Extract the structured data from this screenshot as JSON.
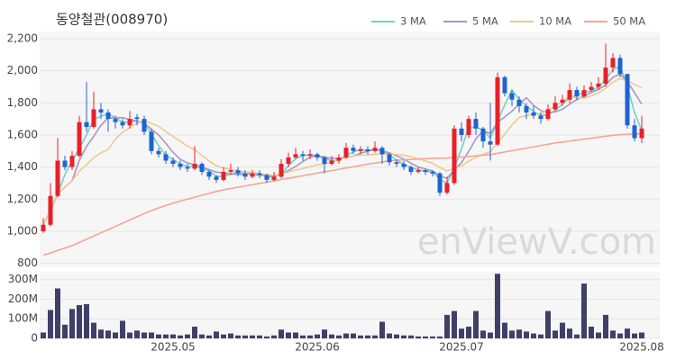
{
  "chart_data": {
    "type": "candlestick",
    "title": "동양철관(008970)",
    "watermark": "enViewV.com",
    "categories": [
      null,
      null,
      null,
      null,
      null,
      null,
      null,
      null,
      null,
      null,
      null,
      null,
      null,
      null,
      null,
      null,
      null,
      null,
      "2025.05",
      null,
      null,
      null,
      null,
      null,
      null,
      null,
      null,
      null,
      null,
      null,
      null,
      null,
      null,
      null,
      null,
      null,
      null,
      null,
      "2025.06",
      null,
      null,
      null,
      null,
      null,
      null,
      null,
      null,
      null,
      null,
      null,
      null,
      null,
      null,
      null,
      null,
      null,
      null,
      null,
      "2025.07",
      null,
      null,
      null,
      null,
      null,
      null,
      null,
      null,
      null,
      null,
      null,
      null,
      null,
      null,
      null,
      null,
      null,
      null,
      null,
      null,
      null,
      null,
      null,
      null,
      "2025.08"
    ],
    "open": [
      1000,
      1040,
      1220,
      1440,
      1400,
      1470,
      1680,
      1650,
      1760,
      1740,
      1700,
      1680,
      1660,
      1710,
      1700,
      1620,
      1500,
      1480,
      1440,
      1420,
      1400,
      1390,
      1420,
      1370,
      1340,
      1320,
      1370,
      1380,
      1360,
      1340,
      1360,
      1350,
      1320,
      1340,
      1420,
      1460,
      1480,
      1470,
      1480,
      1460,
      1420,
      1440,
      1460,
      1520,
      1500,
      1510,
      1500,
      1520,
      1480,
      1430,
      1420,
      1400,
      1370,
      1380,
      1370,
      1360,
      1240,
      1300,
      1640,
      1600,
      1700,
      1640,
      1560,
      1540,
      1960,
      1860,
      1820,
      1780,
      1740,
      1720,
      1700,
      1760,
      1800,
      1820,
      1880,
      1840,
      1880,
      1900,
      1920,
      2020,
      2080,
      1980,
      1660,
      1580
    ],
    "high": [
      1080,
      1300,
      1580,
      1470,
      1500,
      1720,
      1930,
      1870,
      1800,
      1760,
      1720,
      1700,
      1750,
      1730,
      1720,
      1640,
      1520,
      1500,
      1460,
      1440,
      1420,
      1530,
      1430,
      1380,
      1350,
      1400,
      1420,
      1400,
      1380,
      1380,
      1380,
      1360,
      1370,
      1450,
      1490,
      1520,
      1500,
      1510,
      1490,
      1470,
      1470,
      1480,
      1550,
      1540,
      1530,
      1530,
      1560,
      1530,
      1490,
      1450,
      1440,
      1410,
      1400,
      1390,
      1380,
      1370,
      1340,
      1660,
      1680,
      1720,
      1740,
      1650,
      1800,
      1990,
      1970,
      1880,
      1840,
      1800,
      1780,
      1740,
      1790,
      1840,
      1850,
      1920,
      1900,
      1910,
      1930,
      1960,
      2170,
      2110,
      2100,
      1980,
      1700,
      1720
    ],
    "low": [
      990,
      1030,
      1210,
      1380,
      1380,
      1460,
      1620,
      1640,
      1700,
      1620,
      1640,
      1640,
      1640,
      1660,
      1600,
      1480,
      1460,
      1420,
      1400,
      1380,
      1370,
      1380,
      1350,
      1320,
      1300,
      1310,
      1350,
      1340,
      1320,
      1330,
      1330,
      1300,
      1310,
      1330,
      1400,
      1450,
      1440,
      1450,
      1440,
      1360,
      1410,
      1420,
      1450,
      1480,
      1480,
      1480,
      1490,
      1420,
      1410,
      1400,
      1380,
      1350,
      1360,
      1350,
      1340,
      1220,
      1230,
      1290,
      1560,
      1580,
      1600,
      1520,
      1440,
      1530,
      1840,
      1780,
      1740,
      1700,
      1700,
      1670,
      1690,
      1750,
      1780,
      1800,
      1820,
      1830,
      1870,
      1880,
      1900,
      1990,
      1960,
      1640,
      1560,
      1550
    ],
    "close": [
      1040,
      1220,
      1440,
      1400,
      1470,
      1680,
      1650,
      1760,
      1740,
      1700,
      1680,
      1660,
      1700,
      1700,
      1620,
      1500,
      1480,
      1440,
      1420,
      1400,
      1390,
      1420,
      1370,
      1340,
      1320,
      1370,
      1380,
      1360,
      1340,
      1360,
      1350,
      1320,
      1340,
      1420,
      1460,
      1480,
      1470,
      1480,
      1460,
      1420,
      1440,
      1460,
      1520,
      1500,
      1510,
      1500,
      1520,
      1480,
      1430,
      1420,
      1400,
      1370,
      1380,
      1370,
      1360,
      1240,
      1300,
      1640,
      1600,
      1700,
      1640,
      1560,
      1540,
      1960,
      1860,
      1820,
      1780,
      1740,
      1720,
      1700,
      1760,
      1800,
      1820,
      1880,
      1840,
      1880,
      1900,
      1920,
      2020,
      2080,
      1980,
      1660,
      1580,
      1640
    ],
    "up_color": "#e8202a",
    "down_color": "#1e64d0",
    "series": [
      {
        "name": "3 MA",
        "color": "#6fd3c8",
        "values": [
          1040,
          1130,
          1233,
          1353,
          1437,
          1517,
          1600,
          1697,
          1717,
          1733,
          1707,
          1680,
          1680,
          1687,
          1673,
          1607,
          1533,
          1473,
          1447,
          1420,
          1403,
          1403,
          1393,
          1377,
          1343,
          1343,
          1357,
          1370,
          1360,
          1353,
          1350,
          1343,
          1337,
          1360,
          1407,
          1453,
          1470,
          1477,
          1470,
          1453,
          1440,
          1440,
          1473,
          1493,
          1510,
          1503,
          1510,
          1500,
          1477,
          1443,
          1417,
          1397,
          1383,
          1373,
          1370,
          1323,
          1300,
          1393,
          1513,
          1647,
          1647,
          1633,
          1580,
          1687,
          1787,
          1880,
          1820,
          1780,
          1747,
          1720,
          1727,
          1753,
          1793,
          1833,
          1847,
          1867,
          1873,
          1900,
          1947,
          2007,
          2027,
          1907,
          1740,
          1627
        ]
      },
      {
        "name": "5 MA",
        "color": "#a896c6",
        "values": [
          1040,
          1130,
          1233,
          1275,
          1314,
          1442,
          1528,
          1592,
          1660,
          1706,
          1706,
          1708,
          1696,
          1688,
          1672,
          1636,
          1600,
          1548,
          1492,
          1448,
          1426,
          1414,
          1400,
          1384,
          1368,
          1364,
          1356,
          1354,
          1354,
          1362,
          1358,
          1342,
          1342,
          1358,
          1378,
          1404,
          1434,
          1462,
          1470,
          1462,
          1454,
          1452,
          1460,
          1468,
          1486,
          1498,
          1510,
          1502,
          1488,
          1470,
          1450,
          1424,
          1400,
          1388,
          1376,
          1344,
          1330,
          1382,
          1428,
          1496,
          1576,
          1628,
          1608,
          1680,
          1712,
          1748,
          1792,
          1832,
          1784,
          1752,
          1740,
          1744,
          1760,
          1792,
          1820,
          1844,
          1864,
          1884,
          1912,
          1960,
          1980,
          1932,
          1864,
          1792
        ]
      },
      {
        "name": "10 MA",
        "color": "#f0c98e",
        "values": [
          1040,
          1130,
          1233,
          1275,
          1314,
          1375,
          1414,
          1458,
          1489,
          1510,
          1574,
          1618,
          1644,
          1674,
          1689,
          1671,
          1654,
          1622,
          1590,
          1560,
          1531,
          1507,
          1474,
          1438,
          1408,
          1395,
          1385,
          1377,
          1369,
          1365,
          1361,
          1351,
          1348,
          1356,
          1370,
          1381,
          1390,
          1402,
          1414,
          1420,
          1429,
          1443,
          1461,
          1469,
          1474,
          1476,
          1481,
          1481,
          1478,
          1478,
          1474,
          1465,
          1451,
          1438,
          1423,
          1397,
          1375,
          1391,
          1408,
          1436,
          1460,
          1479,
          1495,
          1554,
          1604,
          1662,
          1710,
          1720,
          1732,
          1732,
          1754,
          1778,
          1810,
          1842,
          1830,
          1832,
          1844,
          1862,
          1892,
          1930,
          1952,
          1938,
          1914,
          1894
        ]
      },
      {
        "name": "50 MA",
        "color": "#f4a690",
        "values": [
          850,
          865,
          880,
          895,
          910,
          930,
          950,
          970,
          990,
          1010,
          1030,
          1050,
          1070,
          1090,
          1110,
          1128,
          1145,
          1160,
          1175,
          1188,
          1200,
          1212,
          1224,
          1236,
          1248,
          1258,
          1266,
          1274,
          1282,
          1290,
          1298,
          1306,
          1314,
          1322,
          1330,
          1338,
          1346,
          1354,
          1362,
          1370,
          1378,
          1386,
          1394,
          1402,
          1410,
          1418,
          1425,
          1432,
          1438,
          1442,
          1446,
          1448,
          1450,
          1452,
          1454,
          1455,
          1456,
          1460,
          1462,
          1466,
          1470,
          1474,
          1478,
          1486,
          1494,
          1502,
          1510,
          1518,
          1526,
          1534,
          1542,
          1550,
          1556,
          1562,
          1568,
          1574,
          1580,
          1586,
          1592,
          1598,
          1602,
          1604,
          1606,
          1608
        ]
      }
    ],
    "legend": "top-right",
    "ylim": [
      775,
      2245
    ],
    "yticks": [
      800,
      {
        "value": 1000,
        "label": "1,000"
      },
      {
        "value": 1200,
        "label": "1,200"
      },
      {
        "value": 1400,
        "label": "1,400"
      },
      {
        "value": 1600,
        "label": "1,600"
      },
      {
        "value": 1800,
        "label": "1,800"
      },
      {
        "value": 2000,
        "label": "2,000"
      },
      {
        "value": 2200,
        "label": "2,200"
      }
    ],
    "grid": true,
    "volume": {
      "color": "#3f4068",
      "values": [
        30000000,
        145000000,
        255000000,
        70000000,
        150000000,
        170000000,
        175000000,
        80000000,
        45000000,
        40000000,
        30000000,
        90000000,
        30000000,
        40000000,
        30000000,
        30000000,
        20000000,
        20000000,
        20000000,
        15000000,
        20000000,
        60000000,
        20000000,
        15000000,
        35000000,
        20000000,
        25000000,
        15000000,
        15000000,
        15000000,
        15000000,
        10000000,
        15000000,
        45000000,
        30000000,
        30000000,
        15000000,
        15000000,
        20000000,
        45000000,
        20000000,
        15000000,
        25000000,
        25000000,
        15000000,
        15000000,
        15000000,
        85000000,
        25000000,
        20000000,
        15000000,
        15000000,
        10000000,
        10000000,
        10000000,
        10000000,
        120000000,
        140000000,
        50000000,
        60000000,
        140000000,
        40000000,
        30000000,
        330000000,
        80000000,
        40000000,
        45000000,
        35000000,
        25000000,
        20000000,
        140000000,
        40000000,
        80000000,
        50000000,
        20000000,
        280000000,
        60000000,
        30000000,
        120000000,
        40000000,
        25000000,
        50000000,
        25000000,
        30000000
      ],
      "ylim": [
        0,
        340000000
      ],
      "yticks": [
        0,
        {
          "value": 100000000,
          "label": "100M"
        },
        {
          "value": 200000000,
          "label": "200M"
        },
        {
          "value": 300000000,
          "label": "300M"
        }
      ]
    }
  }
}
